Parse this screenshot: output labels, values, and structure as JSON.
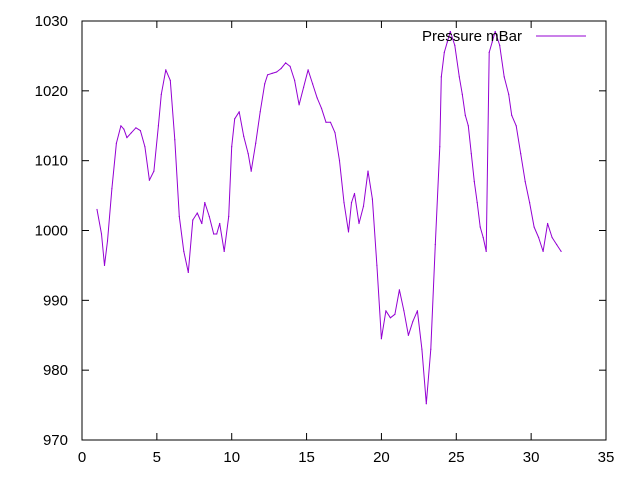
{
  "chart_data": {
    "type": "line",
    "xlim": [
      0,
      35
    ],
    "ylim": [
      970,
      1030
    ],
    "x_ticks": [
      0,
      5,
      10,
      15,
      20,
      25,
      30,
      35
    ],
    "y_ticks": [
      970,
      980,
      990,
      1000,
      1010,
      1020,
      1030
    ],
    "grid": false,
    "legend_position": "top-right",
    "series": [
      {
        "name": "Pressure mBar",
        "color": "#9400d3",
        "x": [
          1.0,
          1.3,
          1.5,
          1.7,
          2.0,
          2.3,
          2.6,
          2.8,
          3.0,
          3.3,
          3.6,
          3.9,
          4.2,
          4.5,
          4.8,
          5.1,
          5.3,
          5.6,
          5.9,
          6.2,
          6.5,
          6.8,
          7.1,
          7.4,
          7.7,
          8.0,
          8.2,
          8.5,
          8.8,
          9.0,
          9.2,
          9.5,
          9.8,
          10.0,
          10.2,
          10.5,
          10.8,
          11.1,
          11.3,
          11.6,
          11.9,
          12.2,
          12.4,
          12.7,
          13.0,
          13.3,
          13.6,
          13.9,
          14.2,
          14.5,
          14.8,
          15.1,
          15.4,
          15.7,
          16.0,
          16.3,
          16.6,
          16.9,
          17.2,
          17.5,
          17.8,
          18.0,
          18.2,
          18.5,
          18.8,
          19.1,
          19.4,
          19.7,
          20.0,
          20.3,
          20.6,
          20.9,
          21.2,
          21.5,
          21.8,
          22.1,
          22.4,
          22.7,
          23.0,
          23.3,
          23.6,
          23.9,
          24.0,
          24.2,
          24.4,
          24.6,
          24.9,
          25.2,
          25.4,
          25.6,
          25.8,
          26.0,
          26.2,
          26.4,
          26.6,
          26.8,
          27.0,
          27.2,
          27.4,
          27.6,
          27.9,
          28.2,
          28.5,
          28.7,
          29.0,
          29.3,
          29.6,
          29.9,
          30.2,
          30.5,
          30.8,
          31.1,
          31.4,
          31.7,
          32.0
        ],
        "y": [
          1003.0,
          999.5,
          995.0,
          998.5,
          1006.0,
          1012.5,
          1015.0,
          1014.5,
          1013.3,
          1014.0,
          1014.7,
          1014.3,
          1012.0,
          1007.2,
          1008.5,
          1015.0,
          1019.5,
          1023.0,
          1021.5,
          1013.0,
          1002.0,
          997.0,
          994.0,
          1001.5,
          1002.5,
          1001.0,
          1004.0,
          1002.0,
          999.5,
          999.5,
          1001.0,
          997.0,
          1002.0,
          1012.0,
          1016.0,
          1017.0,
          1013.5,
          1011.0,
          1008.5,
          1012.5,
          1017.0,
          1021.0,
          1022.3,
          1022.5,
          1022.7,
          1023.2,
          1024.0,
          1023.5,
          1021.5,
          1018.0,
          1020.5,
          1023.0,
          1021.0,
          1019.0,
          1017.5,
          1015.5,
          1015.5,
          1014.0,
          1010.0,
          1004.0,
          999.8,
          1004.0,
          1005.3,
          1001.0,
          1003.5,
          1008.5,
          1004.5,
          995.0,
          984.5,
          988.5,
          987.5,
          988.0,
          991.5,
          988.5,
          985.0,
          987.0,
          988.5,
          983.0,
          975.2,
          983.0,
          998.0,
          1012.0,
          1022.0,
          1025.5,
          1027.0,
          1028.5,
          1026.5,
          1022.0,
          1019.5,
          1016.5,
          1015.0,
          1011.0,
          1007.0,
          1004.0,
          1000.5,
          999.0,
          997.0,
          1025.5,
          1027.0,
          1028.5,
          1026.5,
          1022.0,
          1019.5,
          1016.5,
          1015.0,
          1011.0,
          1007.0,
          1004.0,
          1000.5,
          999.0,
          997.0,
          1001.0,
          999.0,
          998.0,
          997.0
        ]
      }
    ]
  }
}
